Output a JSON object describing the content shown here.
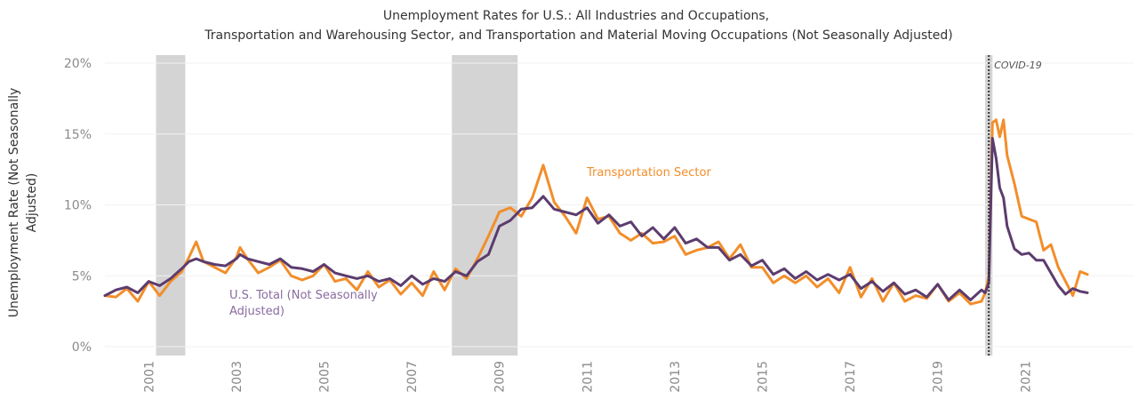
{
  "chart_data": {
    "type": "line",
    "title": [
      "Unemployment Rates for U.S.: All Industries and Occupations,",
      "Transportation and Warehousing Sector, and Transportation and Material Moving Occupations (Not Seasonally Adjusted)"
    ],
    "ylabel": [
      "Unemployment Rate (Not Seasonally",
      "Adjusted)"
    ],
    "ylim": [
      0,
      20
    ],
    "xlim": [
      "2000-01",
      "2022-06"
    ],
    "y_ticks": [
      {
        "value": 0,
        "label": "0%"
      },
      {
        "value": 5,
        "label": "5%"
      },
      {
        "value": 10,
        "label": "10%"
      },
      {
        "value": 15,
        "label": "15%"
      },
      {
        "value": 20,
        "label": "20%"
      }
    ],
    "x_ticks": [
      "2001",
      "2003",
      "2005",
      "2007",
      "2009",
      "2011",
      "2013",
      "2015",
      "2017",
      "2019",
      "2021"
    ],
    "recessions": [
      {
        "start": "2001-03",
        "end": "2001-11"
      },
      {
        "start": "2007-12",
        "end": "2009-06"
      },
      {
        "start": "2020-02",
        "end": "2020-04"
      }
    ],
    "covid_marker": {
      "date": "2020-03",
      "label": "COVID-19"
    },
    "series": [
      {
        "name": "Transportation Sector",
        "color": "#f28e2b",
        "points": [
          [
            "2000-01",
            3.6
          ],
          [
            "2000-04",
            3.5
          ],
          [
            "2000-07",
            4.1
          ],
          [
            "2000-10",
            3.2
          ],
          [
            "2001-01",
            4.6
          ],
          [
            "2001-04",
            3.6
          ],
          [
            "2001-07",
            4.6
          ],
          [
            "2001-10",
            5.3
          ],
          [
            "2001-12",
            6.3
          ],
          [
            "2002-02",
            7.4
          ],
          [
            "2002-04",
            6.0
          ],
          [
            "2002-07",
            5.6
          ],
          [
            "2002-10",
            5.2
          ],
          [
            "2003-01",
            6.3
          ],
          [
            "2003-02",
            7.0
          ],
          [
            "2003-04",
            6.2
          ],
          [
            "2003-07",
            5.2
          ],
          [
            "2003-10",
            5.6
          ],
          [
            "2004-01",
            6.1
          ],
          [
            "2004-04",
            5.0
          ],
          [
            "2004-07",
            4.7
          ],
          [
            "2004-10",
            5.0
          ],
          [
            "2005-01",
            5.8
          ],
          [
            "2005-04",
            4.6
          ],
          [
            "2005-07",
            4.8
          ],
          [
            "2005-10",
            4.0
          ],
          [
            "2006-01",
            5.3
          ],
          [
            "2006-04",
            4.2
          ],
          [
            "2006-07",
            4.7
          ],
          [
            "2006-10",
            3.7
          ],
          [
            "2007-01",
            4.5
          ],
          [
            "2007-04",
            3.6
          ],
          [
            "2007-07",
            5.3
          ],
          [
            "2007-10",
            4.0
          ],
          [
            "2008-01",
            5.5
          ],
          [
            "2008-04",
            4.8
          ],
          [
            "2008-07",
            6.2
          ],
          [
            "2008-10",
            7.8
          ],
          [
            "2009-01",
            9.5
          ],
          [
            "2009-04",
            9.8
          ],
          [
            "2009-07",
            9.2
          ],
          [
            "2009-10",
            10.5
          ],
          [
            "2010-01",
            12.8
          ],
          [
            "2010-04",
            10.2
          ],
          [
            "2010-07",
            9.2
          ],
          [
            "2010-10",
            8.0
          ],
          [
            "2011-01",
            10.5
          ],
          [
            "2011-04",
            9.0
          ],
          [
            "2011-07",
            9.2
          ],
          [
            "2011-10",
            8.0
          ],
          [
            "2012-01",
            7.5
          ],
          [
            "2012-04",
            8.0
          ],
          [
            "2012-07",
            7.3
          ],
          [
            "2012-10",
            7.4
          ],
          [
            "2013-01",
            7.8
          ],
          [
            "2013-04",
            6.5
          ],
          [
            "2013-07",
            6.8
          ],
          [
            "2013-10",
            7.0
          ],
          [
            "2014-01",
            7.4
          ],
          [
            "2014-04",
            6.2
          ],
          [
            "2014-07",
            7.2
          ],
          [
            "2014-10",
            5.6
          ],
          [
            "2015-01",
            5.6
          ],
          [
            "2015-04",
            4.5
          ],
          [
            "2015-07",
            5.0
          ],
          [
            "2015-10",
            4.5
          ],
          [
            "2016-01",
            5.0
          ],
          [
            "2016-04",
            4.2
          ],
          [
            "2016-07",
            4.8
          ],
          [
            "2016-10",
            3.8
          ],
          [
            "2017-01",
            5.6
          ],
          [
            "2017-04",
            3.5
          ],
          [
            "2017-07",
            4.8
          ],
          [
            "2017-10",
            3.2
          ],
          [
            "2018-01",
            4.5
          ],
          [
            "2018-04",
            3.2
          ],
          [
            "2018-07",
            3.6
          ],
          [
            "2018-10",
            3.4
          ],
          [
            "2019-01",
            4.4
          ],
          [
            "2019-04",
            3.2
          ],
          [
            "2019-07",
            3.8
          ],
          [
            "2019-10",
            3.0
          ],
          [
            "2020-01",
            3.2
          ],
          [
            "2020-02",
            3.8
          ],
          [
            "2020-03",
            4.9
          ],
          [
            "2020-04",
            15.8
          ],
          [
            "2020-05",
            16.0
          ],
          [
            "2020-06",
            14.8
          ],
          [
            "2020-07",
            16.0
          ],
          [
            "2020-08",
            13.5
          ],
          [
            "2020-10",
            11.5
          ],
          [
            "2020-12",
            9.2
          ],
          [
            "2021-02",
            9.0
          ],
          [
            "2021-04",
            8.8
          ],
          [
            "2021-06",
            6.8
          ],
          [
            "2021-08",
            7.2
          ],
          [
            "2021-10",
            5.6
          ],
          [
            "2021-12",
            4.6
          ],
          [
            "2022-02",
            3.6
          ],
          [
            "2022-04",
            5.3
          ],
          [
            "2022-06",
            5.1
          ]
        ]
      },
      {
        "name": "U.S. Total (Not Seasonally Adjusted)",
        "color": "#5c3c6e",
        "points": [
          [
            "2000-01",
            3.6
          ],
          [
            "2000-04",
            4.0
          ],
          [
            "2000-07",
            4.2
          ],
          [
            "2000-10",
            3.8
          ],
          [
            "2001-01",
            4.6
          ],
          [
            "2001-04",
            4.3
          ],
          [
            "2001-07",
            4.8
          ],
          [
            "2001-10",
            5.5
          ],
          [
            "2001-12",
            6.0
          ],
          [
            "2002-02",
            6.2
          ],
          [
            "2002-04",
            6.0
          ],
          [
            "2002-07",
            5.8
          ],
          [
            "2002-10",
            5.7
          ],
          [
            "2003-01",
            6.2
          ],
          [
            "2003-02",
            6.5
          ],
          [
            "2003-04",
            6.2
          ],
          [
            "2003-07",
            6.0
          ],
          [
            "2003-10",
            5.8
          ],
          [
            "2004-01",
            6.2
          ],
          [
            "2004-04",
            5.6
          ],
          [
            "2004-07",
            5.5
          ],
          [
            "2004-10",
            5.3
          ],
          [
            "2005-01",
            5.8
          ],
          [
            "2005-04",
            5.2
          ],
          [
            "2005-07",
            5.0
          ],
          [
            "2005-10",
            4.8
          ],
          [
            "2006-01",
            5.0
          ],
          [
            "2006-04",
            4.6
          ],
          [
            "2006-07",
            4.8
          ],
          [
            "2006-10",
            4.3
          ],
          [
            "2007-01",
            5.0
          ],
          [
            "2007-04",
            4.4
          ],
          [
            "2007-07",
            4.8
          ],
          [
            "2007-10",
            4.6
          ],
          [
            "2008-01",
            5.3
          ],
          [
            "2008-04",
            5.0
          ],
          [
            "2008-07",
            6.0
          ],
          [
            "2008-10",
            6.5
          ],
          [
            "2009-01",
            8.5
          ],
          [
            "2009-04",
            8.9
          ],
          [
            "2009-07",
            9.7
          ],
          [
            "2009-10",
            9.8
          ],
          [
            "2010-01",
            10.6
          ],
          [
            "2010-04",
            9.7
          ],
          [
            "2010-07",
            9.5
          ],
          [
            "2010-10",
            9.3
          ],
          [
            "2011-01",
            9.8
          ],
          [
            "2011-04",
            8.7
          ],
          [
            "2011-07",
            9.3
          ],
          [
            "2011-10",
            8.5
          ],
          [
            "2012-01",
            8.8
          ],
          [
            "2012-04",
            7.8
          ],
          [
            "2012-07",
            8.4
          ],
          [
            "2012-10",
            7.6
          ],
          [
            "2013-01",
            8.4
          ],
          [
            "2013-04",
            7.3
          ],
          [
            "2013-07",
            7.6
          ],
          [
            "2013-10",
            7.0
          ],
          [
            "2014-01",
            7.0
          ],
          [
            "2014-04",
            6.1
          ],
          [
            "2014-07",
            6.5
          ],
          [
            "2014-10",
            5.7
          ],
          [
            "2015-01",
            6.1
          ],
          [
            "2015-04",
            5.1
          ],
          [
            "2015-07",
            5.5
          ],
          [
            "2015-10",
            4.8
          ],
          [
            "2016-01",
            5.3
          ],
          [
            "2016-04",
            4.7
          ],
          [
            "2016-07",
            5.1
          ],
          [
            "2016-10",
            4.7
          ],
          [
            "2017-01",
            5.1
          ],
          [
            "2017-04",
            4.1
          ],
          [
            "2017-07",
            4.6
          ],
          [
            "2017-10",
            3.9
          ],
          [
            "2018-01",
            4.5
          ],
          [
            "2018-04",
            3.7
          ],
          [
            "2018-07",
            4.0
          ],
          [
            "2018-10",
            3.5
          ],
          [
            "2019-01",
            4.4
          ],
          [
            "2019-04",
            3.3
          ],
          [
            "2019-07",
            4.0
          ],
          [
            "2019-10",
            3.3
          ],
          [
            "2020-01",
            4.0
          ],
          [
            "2020-02",
            3.8
          ],
          [
            "2020-03",
            4.5
          ],
          [
            "2020-04",
            14.7
          ],
          [
            "2020-05",
            13.3
          ],
          [
            "2020-06",
            11.2
          ],
          [
            "2020-07",
            10.5
          ],
          [
            "2020-08",
            8.5
          ],
          [
            "2020-10",
            6.9
          ],
          [
            "2020-12",
            6.5
          ],
          [
            "2021-02",
            6.6
          ],
          [
            "2021-04",
            6.1
          ],
          [
            "2021-06",
            6.1
          ],
          [
            "2021-08",
            5.2
          ],
          [
            "2021-10",
            4.3
          ],
          [
            "2021-12",
            3.7
          ],
          [
            "2022-02",
            4.1
          ],
          [
            "2022-04",
            3.9
          ],
          [
            "2022-06",
            3.8
          ]
        ]
      }
    ],
    "annotations": [
      {
        "text": "Transportation Sector",
        "series": 0
      },
      {
        "text": [
          "U.S. Total (Not Seasonally",
          "Adjusted)"
        ],
        "series": 1
      }
    ]
  }
}
